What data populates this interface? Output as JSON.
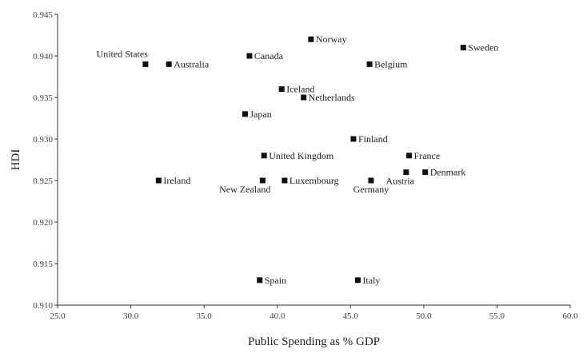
{
  "chart_data": {
    "type": "scatter",
    "xlabel": "Public Spending as % GDP",
    "ylabel": "HDI",
    "xlim": [
      25.0,
      60.0
    ],
    "ylim": [
      0.91,
      0.945
    ],
    "x_ticks": [
      "25.0",
      "30.0",
      "35.0",
      "40.0",
      "45.0",
      "50.0",
      "55.0",
      "60.0"
    ],
    "y_ticks": [
      "0.910",
      "0.915",
      "0.920",
      "0.925",
      "0.930",
      "0.935",
      "0.940",
      "0.945"
    ],
    "grid": false,
    "legend": "none",
    "marker_color": "#111111",
    "points": [
      {
        "label": "United States",
        "x": 31.0,
        "y": 0.939,
        "label_pos": "above-left"
      },
      {
        "label": "Australia",
        "x": 32.6,
        "y": 0.939,
        "label_pos": "right"
      },
      {
        "label": "Canada",
        "x": 38.1,
        "y": 0.94,
        "label_pos": "right"
      },
      {
        "label": "Norway",
        "x": 42.3,
        "y": 0.942,
        "label_pos": "right"
      },
      {
        "label": "Sweden",
        "x": 52.7,
        "y": 0.941,
        "label_pos": "right"
      },
      {
        "label": "Belgium",
        "x": 46.3,
        "y": 0.939,
        "label_pos": "right"
      },
      {
        "label": "Iceland",
        "x": 40.3,
        "y": 0.936,
        "label_pos": "right"
      },
      {
        "label": "Netherlands",
        "x": 41.8,
        "y": 0.935,
        "label_pos": "right"
      },
      {
        "label": "Japan",
        "x": 37.8,
        "y": 0.933,
        "label_pos": "right"
      },
      {
        "label": "Finland",
        "x": 45.2,
        "y": 0.93,
        "label_pos": "right"
      },
      {
        "label": "United Kingdom",
        "x": 39.1,
        "y": 0.928,
        "label_pos": "right"
      },
      {
        "label": "France",
        "x": 49.0,
        "y": 0.928,
        "label_pos": "right"
      },
      {
        "label": "Ireland",
        "x": 31.9,
        "y": 0.925,
        "label_pos": "right"
      },
      {
        "label": "New Zealand",
        "x": 39.0,
        "y": 0.925,
        "label_pos": "below-left"
      },
      {
        "label": "Luxembourg",
        "x": 40.5,
        "y": 0.925,
        "label_pos": "right"
      },
      {
        "label": "Germany",
        "x": 46.4,
        "y": 0.925,
        "label_pos": "below"
      },
      {
        "label": "Austria",
        "x": 48.8,
        "y": 0.926,
        "label_pos": "below-left"
      },
      {
        "label": "Denmark",
        "x": 50.1,
        "y": 0.926,
        "label_pos": "right"
      },
      {
        "label": "Spain",
        "x": 38.8,
        "y": 0.913,
        "label_pos": "right"
      },
      {
        "label": "Italy",
        "x": 45.5,
        "y": 0.913,
        "label_pos": "right"
      }
    ]
  }
}
